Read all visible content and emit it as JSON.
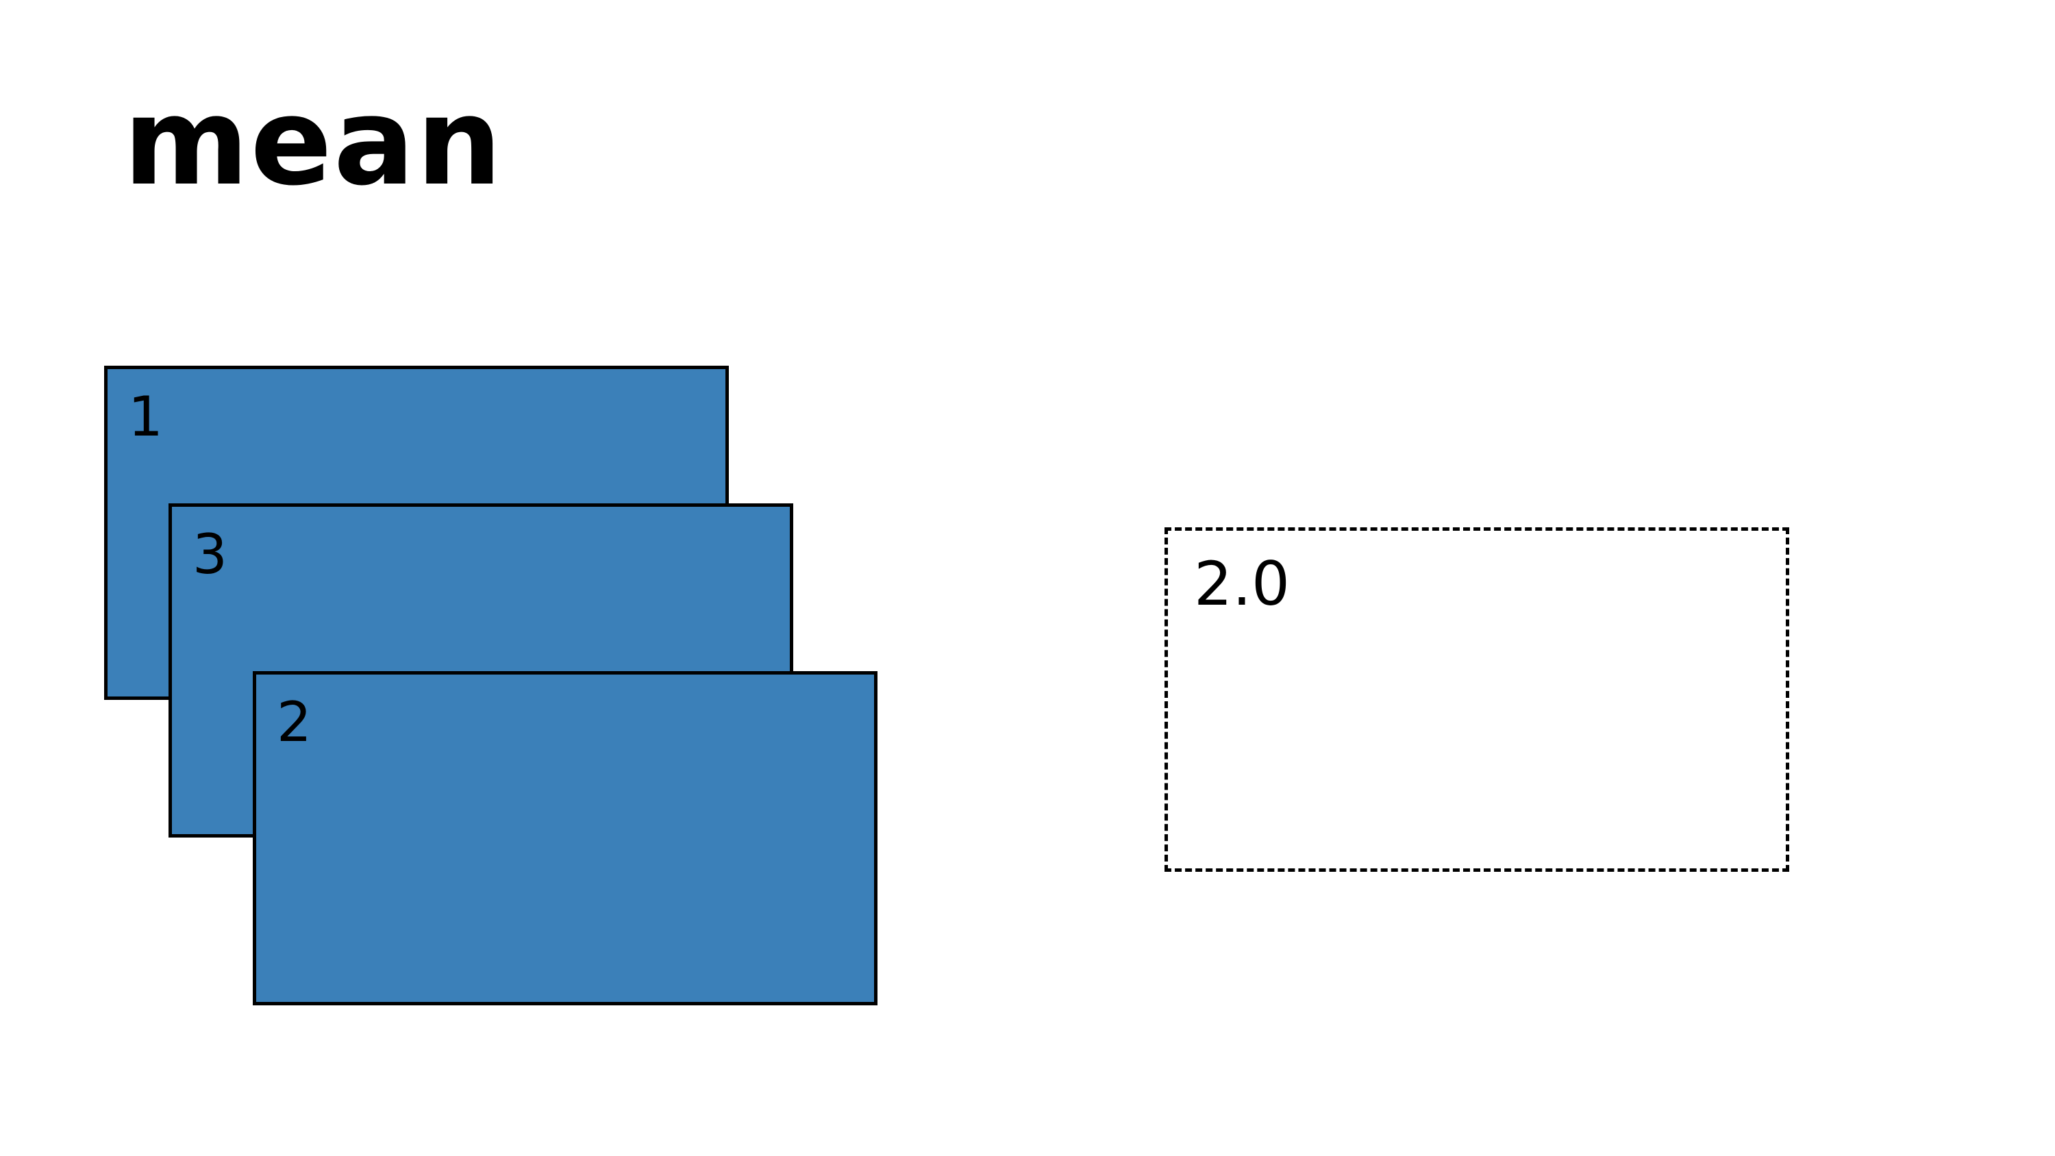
{
  "title": "mean",
  "inputs": [
    {
      "label": "1",
      "color": "#3b80b9"
    },
    {
      "label": "3",
      "color": "#3b80b9"
    },
    {
      "label": "2",
      "color": "#3b80b9"
    }
  ],
  "result": {
    "label": "2.0"
  },
  "colors": {
    "card_fill": "#3b80b9",
    "stroke": "#000000",
    "background": "#ffffff"
  }
}
